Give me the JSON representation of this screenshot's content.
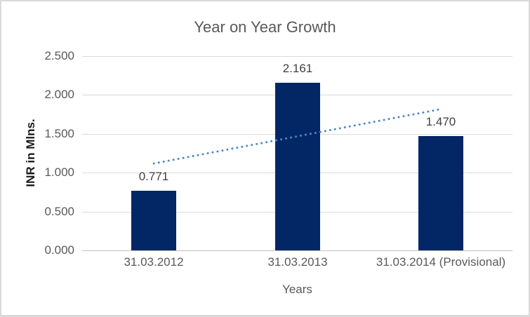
{
  "chart_data": {
    "type": "bar",
    "title": "Year on Year Growth",
    "xlabel": "Years",
    "ylabel": "INR in Mlns.",
    "categories": [
      "31.03.2012",
      "31.03.2013",
      "31.03.2014 (Provisional)"
    ],
    "values": [
      0.771,
      2.161,
      1.47
    ],
    "data_labels": [
      "0.771",
      "2.161",
      "1.470"
    ],
    "ylim": [
      0,
      2.5
    ],
    "y_ticks": [
      {
        "value": 0.0,
        "label": "0.000"
      },
      {
        "value": 0.5,
        "label": "0.500"
      },
      {
        "value": 1.0,
        "label": "1.000"
      },
      {
        "value": 1.5,
        "label": "1.500"
      },
      {
        "value": 2.0,
        "label": "2.000"
      },
      {
        "value": 2.5,
        "label": "2.500"
      }
    ],
    "grid": true,
    "legend": "none",
    "trendline": {
      "type": "linear",
      "style": "dotted",
      "start_value": 1.118,
      "end_value": 1.817,
      "color": "#4e87c9"
    },
    "colors": {
      "bar_fill": "#032765",
      "gridline": "#d9d9d9",
      "axis_line": "#c0c0c0",
      "title_text": "#595959",
      "tick_text": "#595959",
      "axis_title_text": "#595959",
      "y_axis_title_text": "#1a1a1a",
      "data_label_text": "#404040",
      "frame_border": "#d9d9d9",
      "background": "#ffffff"
    }
  }
}
